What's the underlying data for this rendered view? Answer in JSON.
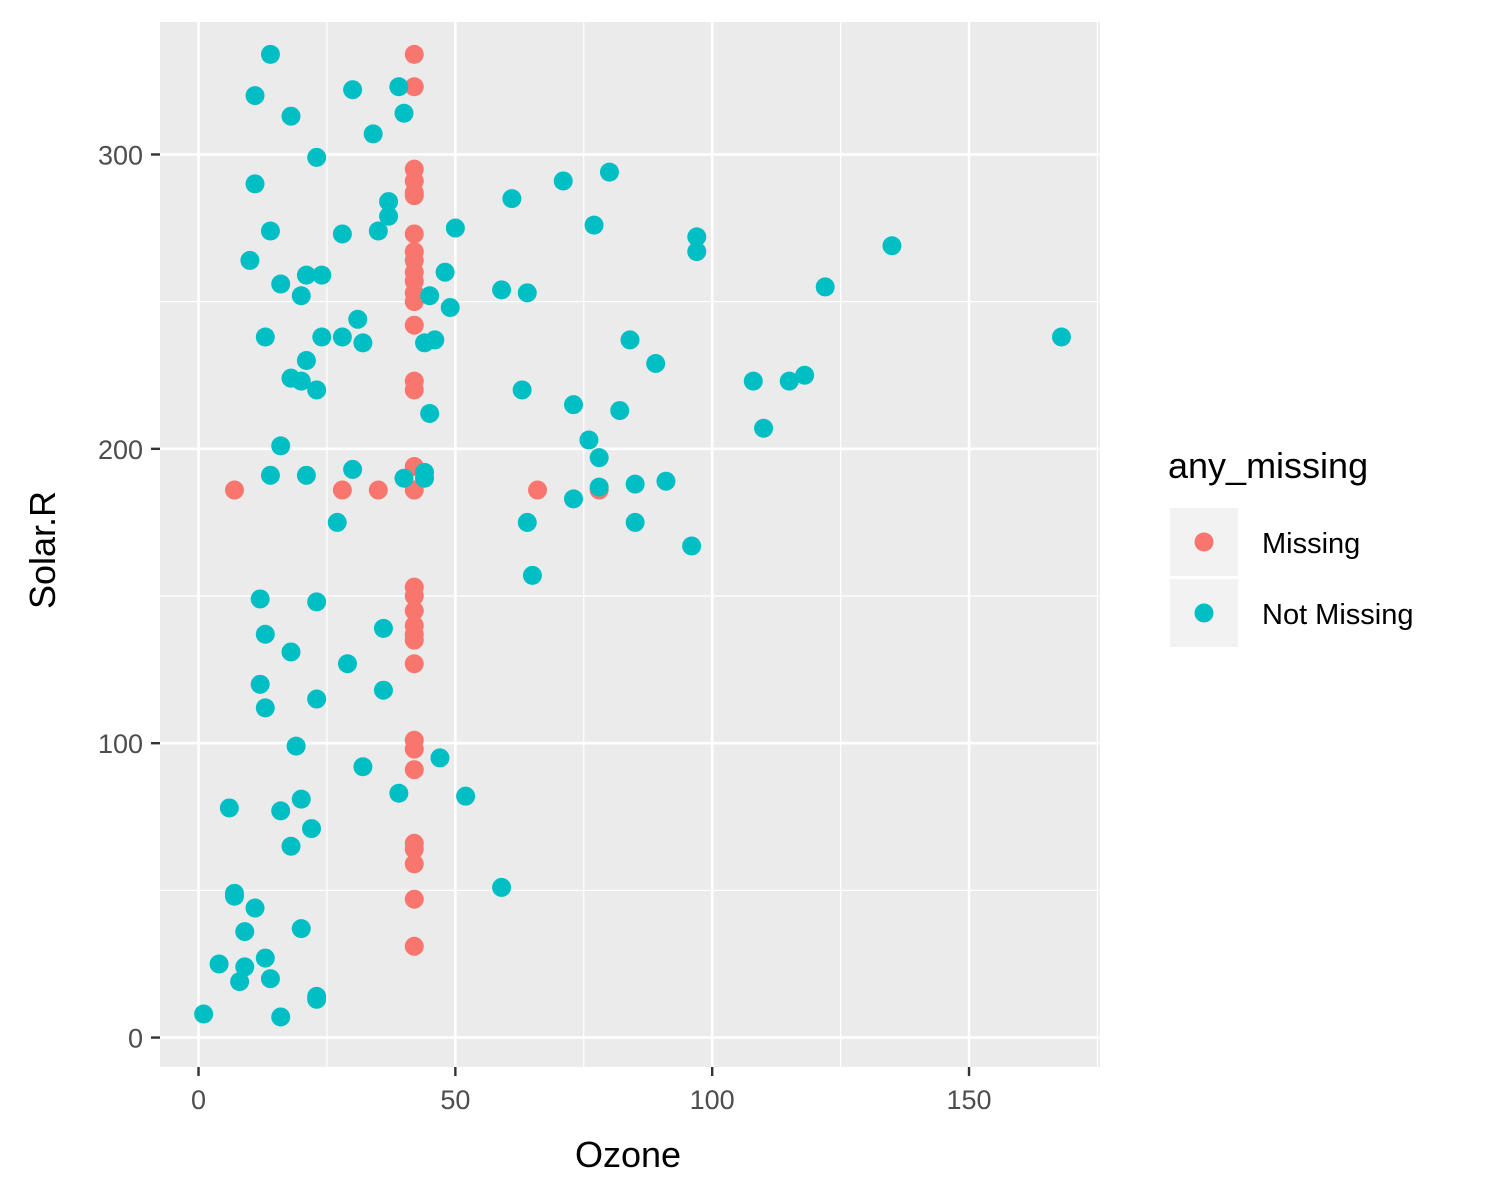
{
  "chart_data": {
    "type": "scatter",
    "xlabel": "Ozone",
    "ylabel": "Solar.R",
    "xlim": [
      -7.5,
      175.5
    ],
    "ylim": [
      -10,
      345
    ],
    "x_ticks": [
      0,
      50,
      100,
      150
    ],
    "y_ticks": [
      0,
      100,
      200,
      300
    ],
    "x_tick_labels": [
      "0",
      "50",
      "100",
      "150"
    ],
    "y_tick_labels": [
      "0",
      "100",
      "200",
      "300"
    ],
    "grid": true,
    "legend": {
      "title": "any_missing",
      "position": "right",
      "entries": [
        {
          "label": "Missing",
          "color": "#F8766D"
        },
        {
          "label": "Not Missing",
          "color": "#00BFC4"
        }
      ]
    },
    "colors": {
      "panel": "#EBEBEB",
      "grid": "#FFFFFF",
      "Missing": "#F8766D",
      "Not Missing": "#00BFC4"
    },
    "series": [
      {
        "name": "Missing",
        "points": [
          [
            42,
            334
          ],
          [
            42,
            323
          ],
          [
            42,
            295
          ],
          [
            42,
            291
          ],
          [
            42,
            287
          ],
          [
            42,
            286
          ],
          [
            42,
            273
          ],
          [
            42,
            267
          ],
          [
            42,
            264
          ],
          [
            42,
            260
          ],
          [
            42,
            257
          ],
          [
            42,
            253
          ],
          [
            42,
            250
          ],
          [
            42,
            242
          ],
          [
            42,
            223
          ],
          [
            42,
            220
          ],
          [
            42,
            194
          ],
          [
            42,
            186
          ],
          [
            42,
            153
          ],
          [
            42,
            150
          ],
          [
            42,
            145
          ],
          [
            42,
            140
          ],
          [
            42,
            137
          ],
          [
            42,
            135
          ],
          [
            42,
            127
          ],
          [
            42,
            101
          ],
          [
            42,
            98
          ],
          [
            42,
            91
          ],
          [
            42,
            66
          ],
          [
            42,
            64
          ],
          [
            42,
            59
          ],
          [
            42,
            47
          ],
          [
            42,
            31
          ],
          [
            7,
            186
          ],
          [
            28,
            186
          ],
          [
            35,
            186
          ],
          [
            66,
            186
          ],
          [
            78,
            186
          ]
        ]
      },
      {
        "name": "Not Missing",
        "points": [
          [
            14,
            334
          ],
          [
            11,
            320
          ],
          [
            30,
            322
          ],
          [
            39,
            323
          ],
          [
            40,
            314
          ],
          [
            18,
            313
          ],
          [
            34,
            307
          ],
          [
            23,
            299
          ],
          [
            11,
            290
          ],
          [
            71,
            291
          ],
          [
            80,
            294
          ],
          [
            61,
            285
          ],
          [
            37,
            284
          ],
          [
            77,
            276
          ],
          [
            14,
            274
          ],
          [
            28,
            273
          ],
          [
            35,
            274
          ],
          [
            50,
            275
          ],
          [
            37,
            279
          ],
          [
            97,
            272
          ],
          [
            97,
            267
          ],
          [
            10,
            264
          ],
          [
            135,
            269
          ],
          [
            48,
            260
          ],
          [
            21,
            259
          ],
          [
            24,
            259
          ],
          [
            16,
            256
          ],
          [
            59,
            254
          ],
          [
            64,
            253
          ],
          [
            45,
            252
          ],
          [
            20,
            252
          ],
          [
            122,
            255
          ],
          [
            49,
            248
          ],
          [
            31,
            244
          ],
          [
            13,
            238
          ],
          [
            24,
            238
          ],
          [
            28,
            238
          ],
          [
            32,
            236
          ],
          [
            44,
            236
          ],
          [
            46,
            237
          ],
          [
            84,
            237
          ],
          [
            168,
            238
          ],
          [
            89,
            229
          ],
          [
            21,
            230
          ],
          [
            18,
            224
          ],
          [
            20,
            223
          ],
          [
            23,
            220
          ],
          [
            63,
            220
          ],
          [
            108,
            223
          ],
          [
            115,
            223
          ],
          [
            118,
            225
          ],
          [
            73,
            215
          ],
          [
            45,
            212
          ],
          [
            82,
            213
          ],
          [
            110,
            207
          ],
          [
            76,
            203
          ],
          [
            16,
            201
          ],
          [
            78,
            197
          ],
          [
            30,
            193
          ],
          [
            14,
            191
          ],
          [
            21,
            191
          ],
          [
            40,
            190
          ],
          [
            44,
            190
          ],
          [
            44,
            192
          ],
          [
            78,
            187
          ],
          [
            85,
            188
          ],
          [
            91,
            189
          ],
          [
            73,
            183
          ],
          [
            27,
            175
          ],
          [
            64,
            175
          ],
          [
            85,
            175
          ],
          [
            96,
            167
          ],
          [
            65,
            157
          ],
          [
            12,
            149
          ],
          [
            23,
            148
          ],
          [
            13,
            137
          ],
          [
            36,
            139
          ],
          [
            18,
            131
          ],
          [
            29,
            127
          ],
          [
            12,
            120
          ],
          [
            36,
            118
          ],
          [
            23,
            115
          ],
          [
            13,
            112
          ],
          [
            19,
            99
          ],
          [
            47,
            95
          ],
          [
            32,
            92
          ],
          [
            39,
            83
          ],
          [
            52,
            82
          ],
          [
            20,
            81
          ],
          [
            6,
            78
          ],
          [
            16,
            77
          ],
          [
            22,
            71
          ],
          [
            18,
            65
          ],
          [
            59,
            51
          ],
          [
            7,
            49
          ],
          [
            7,
            48
          ],
          [
            11,
            44
          ],
          [
            20,
            37
          ],
          [
            9,
            36
          ],
          [
            13,
            27
          ],
          [
            4,
            25
          ],
          [
            9,
            24
          ],
          [
            8,
            19
          ],
          [
            14,
            20
          ],
          [
            23,
            14
          ],
          [
            23,
            13
          ],
          [
            1,
            8
          ],
          [
            16,
            7
          ]
        ]
      }
    ]
  }
}
